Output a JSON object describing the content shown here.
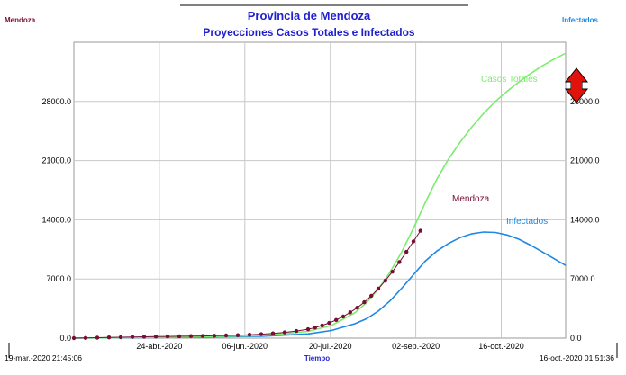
{
  "chart_data": {
    "type": "line",
    "title": "Provincia de Mendoza",
    "subtitle": "Proyecciones Casos Totales e Infectados",
    "left_axis_label": "Mendoza",
    "right_axis_label": "Infectados",
    "xlabel": "Tiempo",
    "x_start_label": "19-mar.-2020 21:45:06",
    "x_end_label": "16-oct.-2020 01:51:36",
    "x_tick_labels": [
      "24-abr.-2020",
      "06-jun.-2020",
      "20-jul.-2020",
      "02-sep.-2020",
      "16-oct.-2020"
    ],
    "y_tick_labels": [
      "0.0",
      "7000.0",
      "14000.0",
      "21000.0",
      "28000.0"
    ],
    "ylim": [
      0,
      35000
    ],
    "grid": true,
    "colors": {
      "title": "#1f1fd0",
      "left_axis": "#7a0d33",
      "right_axis": "#1e88e5",
      "casos_totales": "#7cec6e",
      "infectados": "#1e88e5",
      "mendoza": "#7a0d33",
      "arrow": "#e0120c"
    },
    "series": [
      {
        "name": "Casos Totales",
        "x": [
          0,
          20,
          40,
          60,
          80,
          100,
          110,
          120,
          125,
          130,
          135,
          140,
          145,
          150,
          155,
          160,
          165,
          170,
          175,
          180,
          185,
          190,
          195,
          200,
          205,
          210
        ],
        "y": [
          0,
          50,
          120,
          200,
          300,
          800,
          1500,
          3000,
          4200,
          5800,
          7800,
          10200,
          13000,
          16000,
          18800,
          21200,
          23200,
          25000,
          26600,
          28000,
          29200,
          30300,
          31300,
          32200,
          33000,
          33700
        ]
      },
      {
        "name": "Infectados",
        "x": [
          0,
          20,
          40,
          60,
          80,
          100,
          110,
          120,
          125,
          130,
          135,
          140,
          145,
          150,
          155,
          160,
          165,
          170,
          175,
          180,
          185,
          190,
          195,
          200,
          205,
          210
        ],
        "y": [
          0,
          30,
          80,
          150,
          220,
          500,
          900,
          1700,
          2300,
          3200,
          4400,
          5900,
          7500,
          9100,
          10300,
          11200,
          11900,
          12350,
          12550,
          12500,
          12200,
          11700,
          11000,
          10200,
          9400,
          8600
        ]
      },
      {
        "name": "Mendoza",
        "x": [
          0,
          5,
          10,
          15,
          20,
          25,
          30,
          35,
          40,
          45,
          50,
          55,
          60,
          65,
          70,
          75,
          80,
          85,
          90,
          95,
          100,
          103,
          106,
          109,
          112,
          115,
          118,
          121,
          124,
          127,
          130,
          133,
          136,
          139,
          142,
          145,
          148
        ],
        "y": [
          0,
          20,
          50,
          80,
          110,
          140,
          160,
          180,
          200,
          220,
          240,
          260,
          290,
          320,
          350,
          400,
          470,
          560,
          680,
          840,
          1050,
          1250,
          1500,
          1800,
          2150,
          2550,
          3050,
          3600,
          4250,
          5000,
          5850,
          6800,
          7850,
          9000,
          10200,
          11450,
          12700
        ]
      }
    ]
  }
}
